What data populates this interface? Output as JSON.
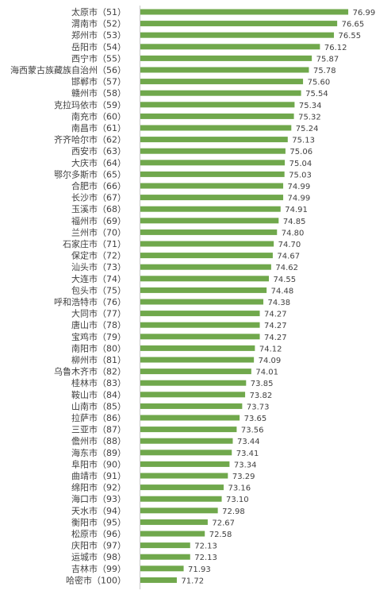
{
  "chart_data": {
    "type": "bar",
    "orientation": "horizontal",
    "title": "",
    "xlabel": "",
    "ylabel": "",
    "categories": [
      "太原市（51）",
      "渭南市（52）",
      "郑州市（53）",
      "岳阳市（54）",
      "西宁市（55）",
      "海西蒙古族藏族自治州（56）",
      "邯郸市（57）",
      "赣州市（58）",
      "克拉玛依市（59）",
      "南充市（60）",
      "南昌市（61）",
      "齐齐哈尔市（62）",
      "西安市（63）",
      "大庆市（64）",
      "鄂尔多斯市（65）",
      "合肥市（66）",
      "长沙市（67）",
      "玉溪市（68）",
      "福州市（69）",
      "兰州市（70）",
      "石家庄市（71）",
      "保定市（72）",
      "汕头市（73）",
      "大连市（74）",
      "包头市（75）",
      "呼和浩特市（76）",
      "大同市（77）",
      "唐山市（78）",
      "宝鸡市（79）",
      "南阳市（80）",
      "柳州市（81）",
      "乌鲁木齐市（82）",
      "桂林市（83）",
      "鞍山市（84）",
      "山南市（85）",
      "拉萨市（86）",
      "三亚市（87）",
      "儋州市（88）",
      "海东市（89）",
      "阜阳市（90）",
      "曲靖市（91）",
      "绵阳市（92）",
      "海口市（93）",
      "天水市（94）",
      "衡阳市（95）",
      "松原市（96）",
      "庆阳市（97）",
      "运城市（98）",
      "吉林市（99）",
      "哈密市（100）"
    ],
    "values": [
      76.99,
      76.65,
      76.55,
      76.12,
      75.87,
      75.78,
      75.6,
      75.54,
      75.34,
      75.32,
      75.24,
      75.13,
      75.06,
      75.04,
      75.03,
      74.99,
      74.99,
      74.91,
      74.85,
      74.8,
      74.7,
      74.67,
      74.62,
      74.55,
      74.48,
      74.38,
      74.27,
      74.27,
      74.27,
      74.12,
      74.09,
      74.01,
      73.85,
      73.82,
      73.73,
      73.65,
      73.56,
      73.44,
      73.41,
      73.34,
      73.29,
      73.16,
      73.1,
      72.98,
      72.67,
      72.58,
      72.13,
      72.13,
      71.93,
      71.72
    ],
    "value_labels": [
      "76.99",
      "76.65",
      "76.55",
      "76.12",
      "75.87",
      "75.78",
      "75.60",
      "75.54",
      "75.34",
      "75.32",
      "75.24",
      "75.13",
      "75.06",
      "75.04",
      "75.03",
      "74.99",
      "74.99",
      "74.91",
      "74.85",
      "74.80",
      "74.70",
      "74.67",
      "74.62",
      "74.55",
      "74.48",
      "74.38",
      "74.27",
      "74.27",
      "74.27",
      "74.12",
      "74.09",
      "74.01",
      "73.85",
      "73.82",
      "73.73",
      "73.65",
      "73.56",
      "73.44",
      "73.41",
      "73.34",
      "73.29",
      "73.16",
      "73.10",
      "72.98",
      "72.67",
      "72.58",
      "72.13",
      "72.13",
      "71.93",
      "71.72"
    ],
    "xlim": [
      70.6,
      77.0
    ],
    "grid": false,
    "legend": "none",
    "bar_color": "#70a84c",
    "axis_color": "#c8c8c8",
    "label_color": "#404040"
  }
}
